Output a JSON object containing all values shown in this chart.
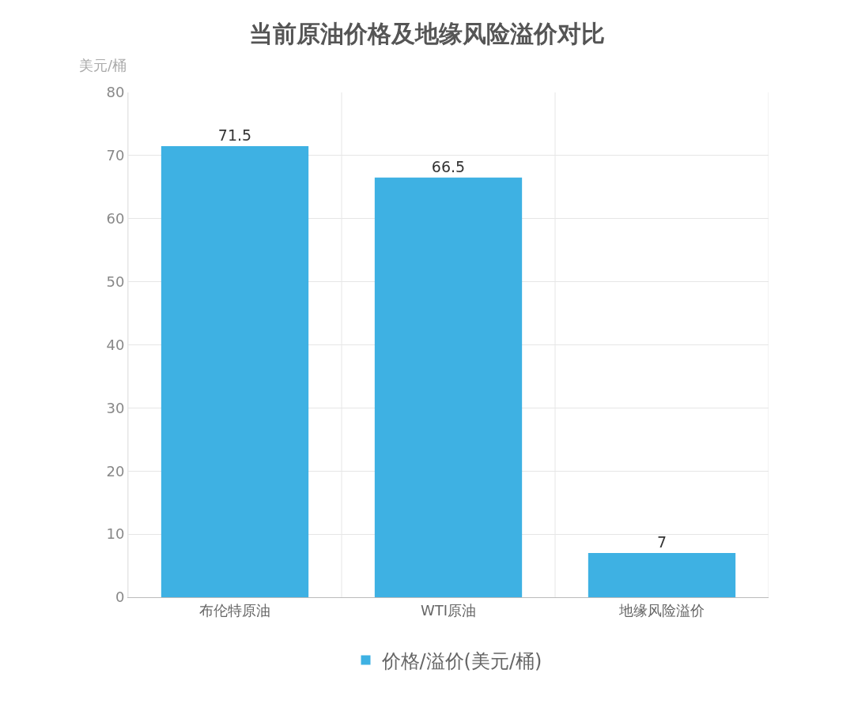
{
  "chart_data": {
    "type": "bar",
    "title": "当前原油价格及地缘风险溢价对比",
    "ylabel": "美元/桶",
    "categories": [
      "布伦特原油",
      "WTI原油",
      "地缘风险溢价"
    ],
    "series": [
      {
        "name": "价格/溢价(美元/桶)",
        "color": "#3eb1e3",
        "values": [
          71.5,
          66.5,
          7
        ]
      }
    ],
    "ylim": [
      0,
      80
    ],
    "yticks": [
      0,
      10,
      20,
      30,
      40,
      50,
      60,
      70,
      80
    ],
    "grid": true,
    "legend": "bottom",
    "data_labels": true
  }
}
